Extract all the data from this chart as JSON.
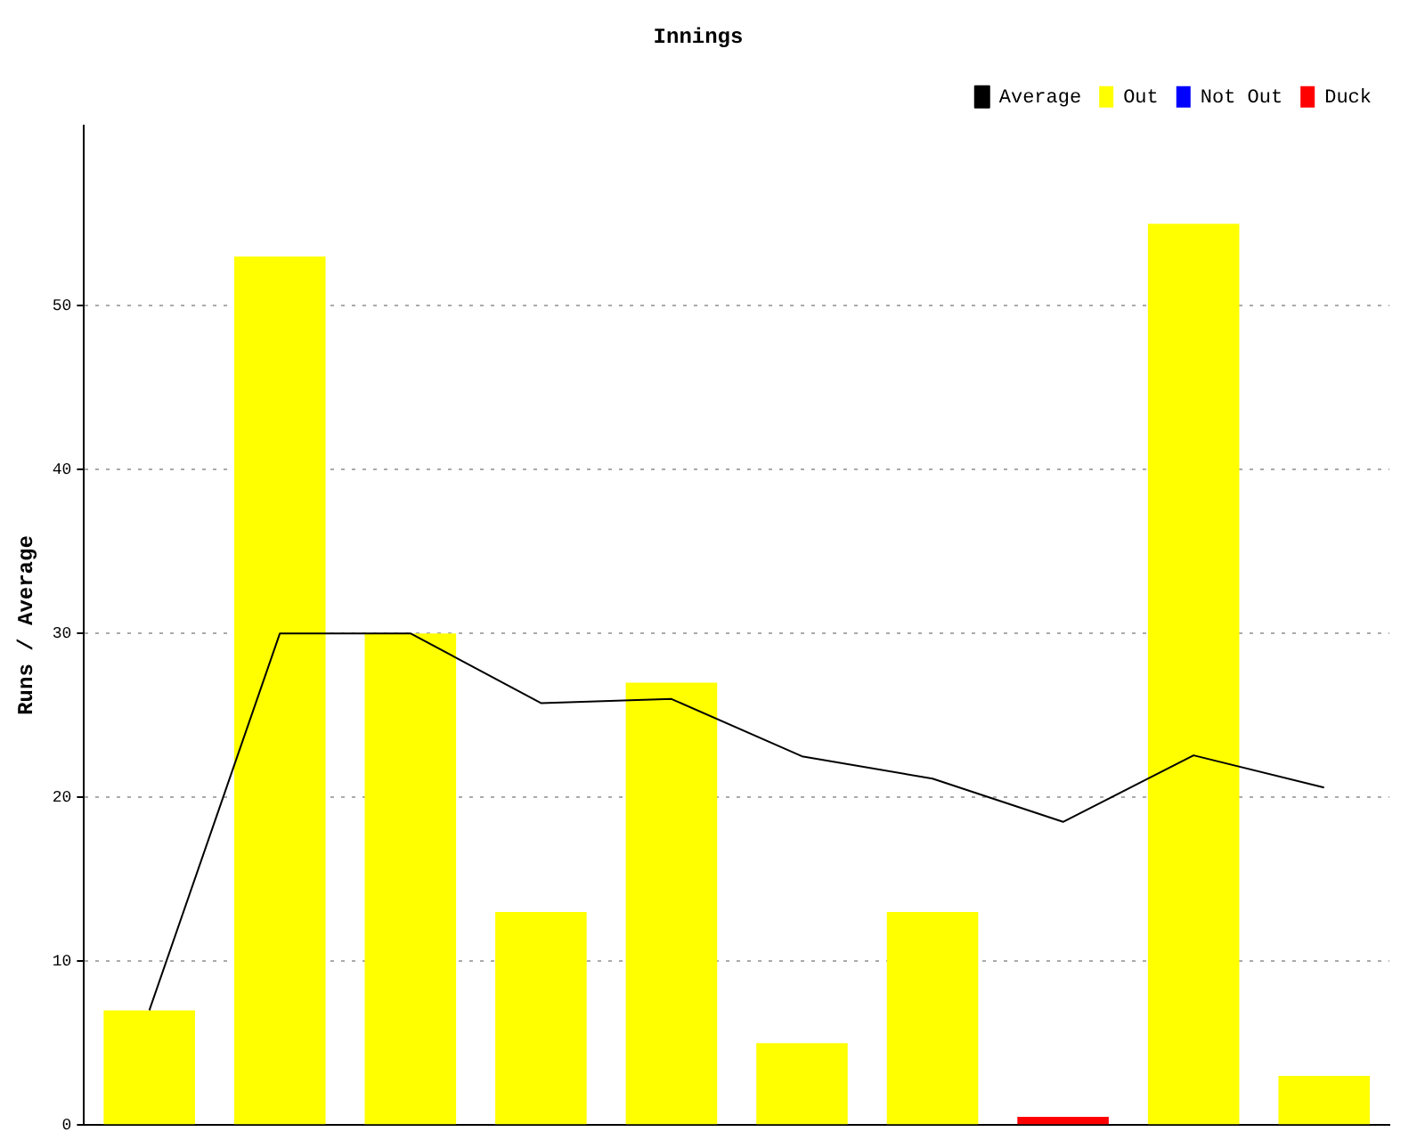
{
  "chart_data": {
    "type": "bar",
    "title": "Innings",
    "ylabel": "Runs / Average",
    "categories": [
      null,
      null,
      null,
      null,
      null,
      null,
      null,
      null,
      null,
      null
    ],
    "series": [
      {
        "name": "Average",
        "type": "line",
        "color": "#000000",
        "values": [
          7,
          30,
          30,
          25.75,
          26,
          22.5,
          21.14,
          18.5,
          22.56,
          20.6
        ]
      },
      {
        "name": "Out",
        "color": "#ffff00",
        "values": [
          7,
          53,
          30,
          13,
          27,
          5,
          13,
          null,
          55,
          3
        ]
      },
      {
        "name": "Not Out",
        "color": "#0000ff",
        "values": [
          null,
          null,
          null,
          null,
          null,
          null,
          null,
          null,
          null,
          null
        ]
      },
      {
        "name": "Duck",
        "color": "#ff0000",
        "values": [
          null,
          null,
          null,
          null,
          null,
          null,
          null,
          0.5,
          null,
          null
        ]
      }
    ],
    "stacked": true,
    "ylim": [
      0,
      61
    ],
    "yticks": [
      0,
      10,
      20,
      30,
      40,
      50
    ],
    "grid": "y",
    "legend": "top right",
    "marker": "none",
    "tick_labels": "y"
  }
}
